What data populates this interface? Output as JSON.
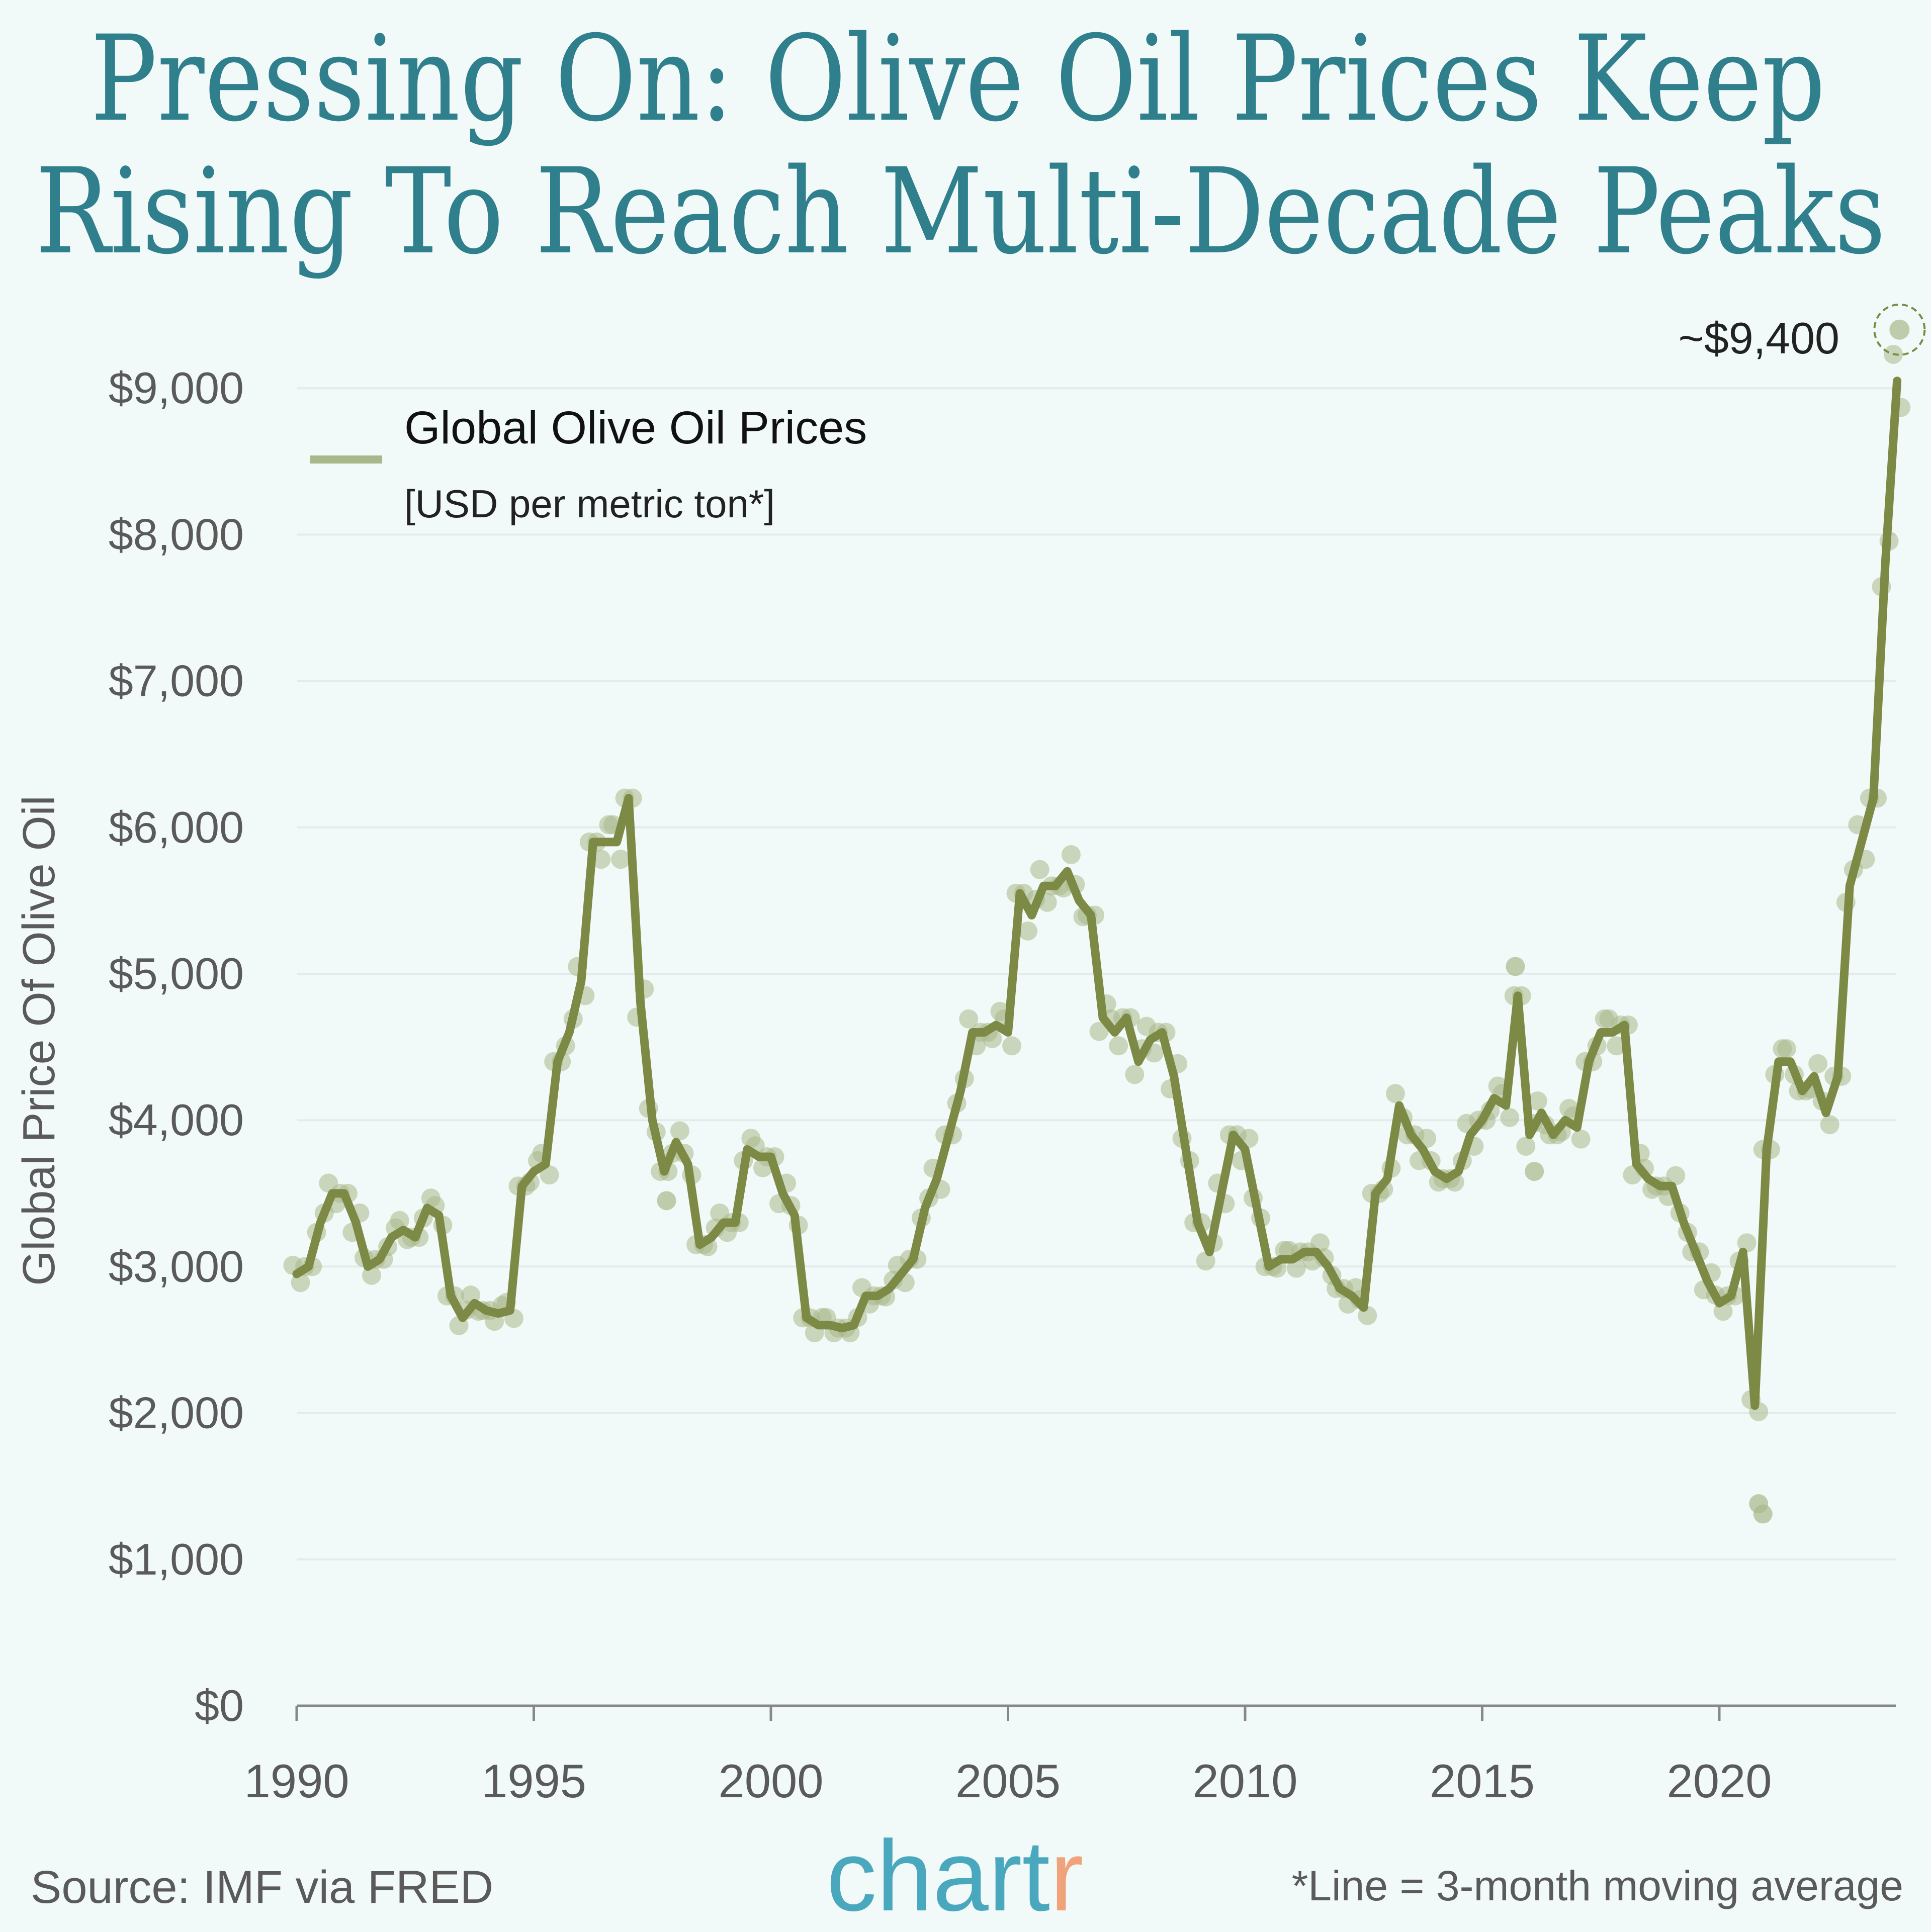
{
  "title_lines": [
    "Pressing On: Olive Oil Prices Keep",
    "Rising To Reach Multi-Decade Peaks"
  ],
  "source": "Source: IMF via FRED",
  "brand": {
    "main": "chart",
    "accent_letter": "r"
  },
  "footnote": "*Line = 3-month moving average",
  "colors": {
    "background": "#f2faf9",
    "title": "#2f7f8c",
    "line": "#7d8a45",
    "dots": "#a9b88a",
    "brand": "#4aa8be",
    "brand_accent": "#f0a27a"
  },
  "chart_data": {
    "type": "line",
    "ylabel": "Global Price Of Olive Oil",
    "ylim": [
      0,
      9000
    ],
    "xlim": [
      1990,
      2023.8
    ],
    "yticks": [
      "$0",
      "$1,000",
      "$2,000",
      "$3,000",
      "$4,000",
      "$5,000",
      "$6,000",
      "$7,000",
      "$8,000",
      "$9,000"
    ],
    "xticks": [
      "1990",
      "1995",
      "2000",
      "2005",
      "2010",
      "2015",
      "2020"
    ],
    "grid": true,
    "legend": {
      "placement": "top-left",
      "name": "Global Olive Oil Prices",
      "unit": "[USD per metric ton*]"
    },
    "annotation": {
      "label": "~$9,400",
      "x": 2023.8,
      "y": 9400
    },
    "series": [
      {
        "name": "Global Olive Oil Prices",
        "x": [
          1990,
          1990.25,
          1990.5,
          1990.75,
          1991,
          1991.25,
          1991.5,
          1991.75,
          1992,
          1992.25,
          1992.5,
          1992.75,
          1993,
          1993.25,
          1993.5,
          1993.75,
          1994,
          1994.25,
          1994.5,
          1994.75,
          1995,
          1995.25,
          1995.5,
          1995.75,
          1996,
          1996.25,
          1996.5,
          1996.75,
          1997,
          1997.25,
          1997.5,
          1997.75,
          1998,
          1998.25,
          1998.5,
          1998.75,
          1999,
          1999.25,
          1999.5,
          1999.75,
          2000,
          2000.25,
          2000.5,
          2000.75,
          2001,
          2001.25,
          2001.5,
          2001.75,
          2002,
          2002.25,
          2002.5,
          2002.75,
          2003,
          2003.25,
          2003.5,
          2003.75,
          2004,
          2004.25,
          2004.5,
          2004.75,
          2005,
          2005.25,
          2005.5,
          2005.75,
          2006,
          2006.25,
          2006.5,
          2006.75,
          2007,
          2007.25,
          2007.5,
          2007.75,
          2008,
          2008.25,
          2008.5,
          2008.75,
          2009,
          2009.25,
          2009.5,
          2009.75,
          2010,
          2010.25,
          2010.5,
          2010.75,
          2011,
          2011.25,
          2011.5,
          2011.75,
          2012,
          2012.25,
          2012.5,
          2012.75,
          2013,
          2013.25,
          2013.5,
          2013.75,
          2014,
          2014.25,
          2014.5,
          2014.75,
          2015,
          2015.25,
          2015.5,
          2015.75,
          2016,
          2016.25,
          2016.5,
          2016.75,
          2017,
          2017.25,
          2017.5,
          2017.75,
          2018,
          2018.25,
          2018.5,
          2018.75,
          2019,
          2019.25,
          2019.5,
          2019.75,
          2020,
          2020.25,
          2020.5,
          2020.75,
          2021,
          2021.25,
          2021.5,
          2021.75,
          2022,
          2022.25,
          2022.5,
          2022.75,
          2023,
          2023.25,
          2023.5,
          2023.75
        ],
        "values": [
          2950,
          3000,
          3300,
          3500,
          3500,
          3300,
          3000,
          3050,
          3200,
          3250,
          3200,
          3400,
          3350,
          2800,
          2650,
          2750,
          2700,
          2680,
          2700,
          3550,
          3650,
          3700,
          4400,
          4600,
          4950,
          5900,
          5900,
          5900,
          6200,
          4800,
          4000,
          3650,
          3850,
          3700,
          3150,
          3200,
          3300,
          3300,
          3800,
          3750,
          3750,
          3500,
          3350,
          2650,
          2600,
          2600,
          2580,
          2600,
          2800,
          2800,
          2850,
          2950,
          3050,
          3400,
          3600,
          3900,
          4200,
          4600,
          4600,
          4650,
          4600,
          5550,
          5400,
          5600,
          5600,
          5700,
          5500,
          5400,
          4700,
          4600,
          4700,
          4400,
          4550,
          4600,
          4300,
          3800,
          3300,
          3100,
          3500,
          3900,
          3800,
          3400,
          3000,
          3050,
          3050,
          3100,
          3100,
          3000,
          2850,
          2800,
          2720,
          3500,
          3600,
          4100,
          3900,
          3800,
          3650,
          3600,
          3650,
          3900,
          4000,
          4150,
          4100,
          4850,
          3900,
          4050,
          3900,
          4000,
          3950,
          4400,
          4600,
          4600,
          4650,
          3700,
          3600,
          3550,
          3550,
          3300,
          3100,
          2900,
          2750,
          2800,
          3100,
          2050,
          3800,
          4400,
          4400,
          4200,
          4300,
          4050,
          4300,
          5600,
          5900,
          6200,
          7800,
          9050
        ]
      }
    ],
    "monthly_outliers": [
      {
        "x": 2020.83,
        "y": 1380
      },
      {
        "x": 2020.92,
        "y": 1310
      },
      {
        "x": 2015.7,
        "y": 5050
      },
      {
        "x": 2016.1,
        "y": 3650
      },
      {
        "x": 1997.8,
        "y": 3450
      }
    ]
  }
}
